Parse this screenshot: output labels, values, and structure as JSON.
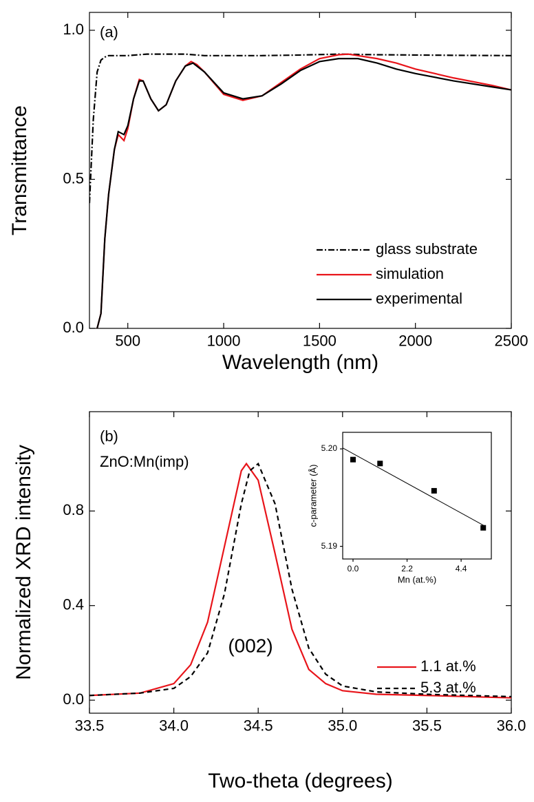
{
  "chart_data": [
    {
      "type": "line",
      "annotations": [
        "(a)"
      ],
      "xlabel": "Wavelength (nm)",
      "ylabel": "Transmittance",
      "xlim": [
        300,
        2500
      ],
      "ylim": [
        0,
        1.06
      ],
      "xticks": [
        500,
        1000,
        1500,
        2000,
        2500
      ],
      "yticks": [
        {
          "value": 0,
          "label": "0.0"
        },
        0.5,
        {
          "value": 1,
          "label": "1.0"
        }
      ],
      "mirror_ticks": true,
      "legend": "lower right",
      "series": [
        {
          "name": "glass substrate",
          "color": "#000000",
          "line_style": "dashdot",
          "x": [
            300,
            320,
            340,
            360,
            380,
            400,
            500,
            600,
            800,
            900,
            1000,
            1200,
            1400,
            1600,
            1800,
            2000,
            2200,
            2500
          ],
          "values": [
            0.42,
            0.7,
            0.86,
            0.9,
            0.91,
            0.915,
            0.915,
            0.92,
            0.92,
            0.915,
            0.915,
            0.915,
            0.917,
            0.92,
            0.918,
            0.917,
            0.916,
            0.915
          ]
        },
        {
          "name": "simulation",
          "color": "#e8141a",
          "line_style": "solid",
          "x": [
            340,
            360,
            380,
            400,
            430,
            450,
            480,
            500,
            530,
            560,
            580,
            620,
            660,
            700,
            750,
            800,
            830,
            860,
            900,
            1000,
            1100,
            1200,
            1300,
            1400,
            1500,
            1600,
            1650,
            1700,
            1800,
            1900,
            2000,
            2200,
            2400,
            2500
          ],
          "values": [
            0,
            0.05,
            0.3,
            0.45,
            0.6,
            0.65,
            0.63,
            0.67,
            0.77,
            0.835,
            0.83,
            0.77,
            0.73,
            0.75,
            0.83,
            0.88,
            0.895,
            0.885,
            0.86,
            0.785,
            0.765,
            0.78,
            0.825,
            0.87,
            0.905,
            0.918,
            0.92,
            0.915,
            0.905,
            0.89,
            0.87,
            0.84,
            0.815,
            0.8
          ]
        },
        {
          "name": "experimental",
          "color": "#000000",
          "line_style": "solid",
          "x": [
            340,
            360,
            380,
            400,
            430,
            450,
            480,
            500,
            530,
            560,
            580,
            620,
            660,
            700,
            750,
            800,
            840,
            900,
            1000,
            1100,
            1200,
            1300,
            1400,
            1500,
            1600,
            1700,
            1800,
            1900,
            2000,
            2200,
            2400,
            2500
          ],
          "values": [
            0,
            0.05,
            0.3,
            0.45,
            0.6,
            0.66,
            0.65,
            0.68,
            0.77,
            0.83,
            0.83,
            0.77,
            0.73,
            0.75,
            0.83,
            0.88,
            0.89,
            0.86,
            0.79,
            0.77,
            0.78,
            0.82,
            0.865,
            0.895,
            0.905,
            0.905,
            0.89,
            0.87,
            0.855,
            0.83,
            0.81,
            0.8
          ]
        }
      ]
    },
    {
      "type": "line",
      "annotations": [
        "(b)",
        "ZnO:Mn(imp)",
        "(002)"
      ],
      "xlabel": "Two-theta (degrees)",
      "ylabel": "Normalized XRD intensity",
      "xlim": [
        33.5,
        36.0
      ],
      "ylim": [
        -0.055,
        1.22
      ],
      "xticks": [
        33.5,
        {
          "value": 34,
          "label": "34.0"
        },
        34.5,
        {
          "value": 35,
          "label": "35.0"
        },
        35.5,
        {
          "value": 36,
          "label": "36.0"
        }
      ],
      "yticks": [
        {
          "value": 0,
          "label": "0.0"
        },
        0.4,
        0.8
      ],
      "mirror_ticks": true,
      "legend": "lower right",
      "series": [
        {
          "name": "1.1 at.%",
          "color": "#e8141a",
          "line_style": "solid",
          "x": [
            33.5,
            33.8,
            34.0,
            34.1,
            34.2,
            34.3,
            34.4,
            34.43,
            34.5,
            34.6,
            34.7,
            34.8,
            34.9,
            35.0,
            35.2,
            35.5,
            36.0
          ],
          "values": [
            0.02,
            0.03,
            0.07,
            0.15,
            0.33,
            0.65,
            0.97,
            1.0,
            0.93,
            0.62,
            0.3,
            0.13,
            0.07,
            0.04,
            0.025,
            0.02,
            0.01
          ]
        },
        {
          "name": "5.3 at.%",
          "color": "#000000",
          "line_style": "dashed",
          "x": [
            33.5,
            33.8,
            34.0,
            34.1,
            34.2,
            34.3,
            34.4,
            34.45,
            34.5,
            34.6,
            34.7,
            34.8,
            34.9,
            35.0,
            35.2,
            35.5,
            36.0
          ],
          "values": [
            0.02,
            0.03,
            0.05,
            0.1,
            0.2,
            0.45,
            0.83,
            0.97,
            1.0,
            0.83,
            0.47,
            0.22,
            0.11,
            0.06,
            0.035,
            0.025,
            0.015
          ]
        }
      ]
    },
    {
      "type": "scatter",
      "xlabel": "Mn (at.%)",
      "ylabel": "c-parameter (Å)",
      "xlim": [
        -0.42,
        5.63
      ],
      "ylim": [
        5.1887,
        5.2017
      ],
      "xticks": [
        {
          "value": 0,
          "label": "0.0"
        },
        2.2,
        4.4
      ],
      "yticks": [
        5.19,
        {
          "value": 5.2,
          "label": "5.20"
        }
      ],
      "color": "#000000",
      "points": {
        "x": [
          0,
          1.1,
          3.3,
          5.3
        ],
        "values": [
          5.1989,
          5.1985,
          5.1957,
          5.1919
        ]
      },
      "fit": {
        "x": [
          -0.42,
          5.35
        ],
        "values": [
          5.2001,
          5.1921
        ]
      }
    }
  ]
}
